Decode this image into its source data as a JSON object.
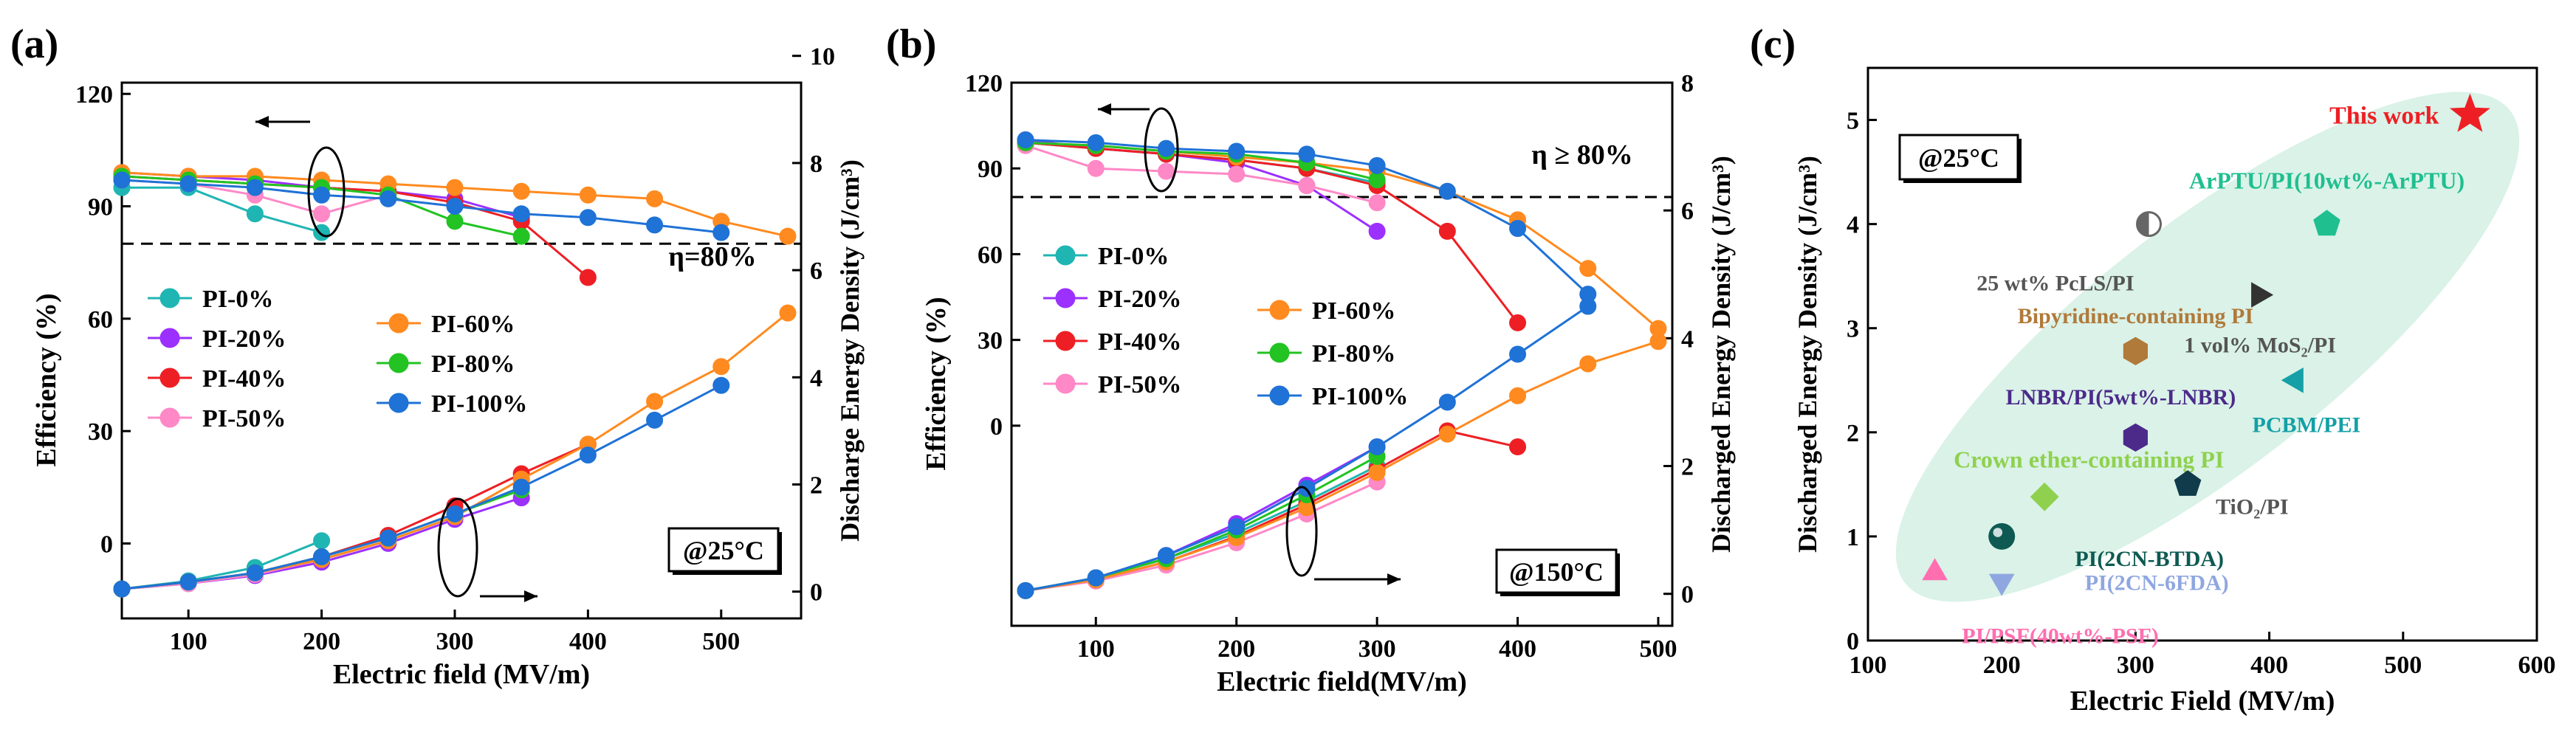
{
  "figure": {
    "domain": "Chart"
  },
  "chart_data": [
    {
      "id": "a",
      "panel_label": "(a)",
      "type": "line",
      "xlabel": "Electric field (MV/m)",
      "ylabel": "Efficiency (%)",
      "y2label": "Discharge Energy Density  (J/cm³)",
      "xlim": [
        50,
        560
      ],
      "ylim": [
        -20,
        123
      ],
      "y2lim": [
        -0.5,
        9.5
      ],
      "x_ticks": [
        100,
        200,
        300,
        400,
        500
      ],
      "y_ticks": [
        0,
        30,
        60,
        90,
        120
      ],
      "y2_ticks": [
        0,
        2,
        4,
        6,
        8,
        10
      ],
      "threshold": {
        "value": 80,
        "label": "η=80%"
      },
      "temperature_label": "@25°C",
      "legend_columns": [
        [
          "PI-0%",
          "PI-20%",
          "PI-40%",
          "PI-50%"
        ],
        [
          "PI-60%",
          "PI-80%",
          "PI-100%"
        ]
      ],
      "series": [
        {
          "name": "PI-0%",
          "color": "#1fb5b3",
          "efficiency": {
            "x": [
              50,
              100,
              150,
              200
            ],
            "y": [
              95,
              95,
              88,
              83
            ]
          },
          "energy": {
            "x": [
              50,
              100,
              150,
              200
            ],
            "y": [
              0.05,
              0.2,
              0.45,
              0.95
            ]
          }
        },
        {
          "name": "PI-20%",
          "color": "#9b30ff",
          "efficiency": {
            "x": [
              50,
              100,
              150,
              200,
              250,
              300,
              350
            ],
            "y": [
              99,
              98,
              97,
              95,
              94,
              92,
              87
            ]
          },
          "energy": {
            "x": [
              50,
              100,
              150,
              200,
              250,
              300,
              350
            ],
            "y": [
              0.05,
              0.15,
              0.3,
              0.55,
              0.9,
              1.35,
              1.75
            ]
          }
        },
        {
          "name": "PI-40%",
          "color": "#ee1f24",
          "efficiency": {
            "x": [
              50,
              100,
              150,
              200,
              250,
              300,
              350,
              400
            ],
            "y": [
              98,
              97,
              96,
              95,
              94,
              91,
              86,
              71
            ]
          },
          "energy": {
            "x": [
              50,
              100,
              150,
              200,
              250,
              300,
              350,
              400
            ],
            "y": [
              0.05,
              0.18,
              0.35,
              0.65,
              1.05,
              1.6,
              2.2,
              2.75
            ]
          }
        },
        {
          "name": "PI-50%",
          "color": "#ff88c6",
          "efficiency": {
            "x": [
              50,
              100,
              150,
              200,
              250
            ],
            "y": [
              97,
              96,
              93,
              88,
              93
            ]
          },
          "energy": {
            "x": [
              50,
              100,
              150,
              200,
              250
            ],
            "y": [
              0.05,
              0.15,
              0.32,
              0.6,
              0.95
            ]
          }
        },
        {
          "name": "PI-60%",
          "color": "#ff8a1f",
          "efficiency": {
            "x": [
              50,
              100,
              150,
              200,
              250,
              300,
              350,
              400,
              450,
              500,
              550
            ],
            "y": [
              99,
              98,
              98,
              97,
              96,
              95,
              94,
              93,
              92,
              86,
              82
            ]
          },
          "energy": {
            "x": [
              50,
              100,
              150,
              200,
              250,
              300,
              350,
              400,
              450,
              500,
              550
            ],
            "y": [
              0.05,
              0.18,
              0.35,
              0.6,
              0.95,
              1.4,
              2.1,
              2.75,
              3.55,
              4.2,
              5.2
            ]
          }
        },
        {
          "name": "PI-80%",
          "color": "#22c322",
          "efficiency": {
            "x": [
              50,
              100,
              150,
              200,
              250,
              300,
              350
            ],
            "y": [
              98,
              97,
              96,
              95,
              93,
              86,
              82
            ]
          },
          "energy": {
            "x": [
              50,
              100,
              150,
              200,
              250,
              300,
              350
            ],
            "y": [
              0.05,
              0.18,
              0.35,
              0.65,
              1.0,
              1.45,
              1.9
            ]
          }
        },
        {
          "name": "PI-100%",
          "color": "#1f72d6",
          "efficiency": {
            "x": [
              50,
              100,
              150,
              200,
              250,
              300,
              350,
              400,
              450,
              500
            ],
            "y": [
              97,
              96,
              95,
              93,
              92,
              90,
              88,
              87,
              85,
              83
            ]
          },
          "energy": {
            "x": [
              50,
              100,
              150,
              200,
              250,
              300,
              350,
              400,
              450,
              500
            ],
            "y": [
              0.05,
              0.18,
              0.35,
              0.65,
              1.0,
              1.45,
              1.95,
              2.55,
              3.2,
              3.85
            ]
          }
        }
      ]
    },
    {
      "id": "b",
      "panel_label": "(b)",
      "type": "line",
      "xlabel": "Electric field(MV/m)",
      "ylabel": "Efficiency (%)",
      "y2label": "Discharged Energy Density (J/cm³)",
      "xlim": [
        40,
        510
      ],
      "ylim": [
        -70,
        120
      ],
      "y2lim": [
        -0.5,
        8
      ],
      "x_ticks": [
        100,
        200,
        300,
        400,
        500
      ],
      "y_ticks": [
        0,
        30,
        60,
        90,
        120
      ],
      "y2_ticks": [
        0,
        2,
        4,
        6,
        8
      ],
      "threshold": {
        "value": 80,
        "label": "η ≥ 80%"
      },
      "temperature_label": "@150°C",
      "legend_columns": [
        [
          "PI-0%",
          "PI-20%",
          "PI-40%",
          "PI-50%"
        ],
        [
          "PI-60%",
          "PI-80%",
          "PI-100%"
        ]
      ],
      "series": [
        {
          "name": "PI-0%",
          "color": "#1fb5b3",
          "efficiency": {
            "x": [
              50,
              100,
              150,
              200,
              250,
              300
            ],
            "y": [
              99,
              97,
              95,
              93,
              90,
              85
            ]
          },
          "energy": {
            "x": [
              50,
              100,
              150,
              200,
              250,
              300
            ],
            "y": [
              0.05,
              0.25,
              0.55,
              0.95,
              1.45,
              2.0
            ]
          }
        },
        {
          "name": "PI-20%",
          "color": "#9b30ff",
          "efficiency": {
            "x": [
              50,
              100,
              150,
              200,
              250,
              300
            ],
            "y": [
              100,
              97,
              95,
              92,
              84,
              68
            ]
          },
          "energy": {
            "x": [
              50,
              100,
              150,
              200,
              250,
              300
            ],
            "y": [
              0.05,
              0.25,
              0.6,
              1.1,
              1.7,
              2.3
            ]
          }
        },
        {
          "name": "PI-40%",
          "color": "#ee1f24",
          "efficiency": {
            "x": [
              50,
              100,
              150,
              200,
              250,
              300,
              350,
              400
            ],
            "y": [
              99,
              97,
              95,
              93,
              90,
              84,
              68,
              36
            ]
          },
          "energy": {
            "x": [
              50,
              100,
              150,
              200,
              250,
              300,
              350,
              400
            ],
            "y": [
              0.05,
              0.22,
              0.5,
              0.9,
              1.4,
              1.95,
              2.55,
              2.3
            ]
          }
        },
        {
          "name": "PI-50%",
          "color": "#ff88c6",
          "efficiency": {
            "x": [
              50,
              100,
              150,
              200,
              250,
              300
            ],
            "y": [
              98,
              90,
              89,
              88,
              84,
              78
            ]
          },
          "energy": {
            "x": [
              50,
              100,
              150,
              200,
              250,
              300
            ],
            "y": [
              0.05,
              0.2,
              0.45,
              0.8,
              1.25,
              1.75
            ]
          }
        },
        {
          "name": "PI-60%",
          "color": "#ff8a1f",
          "efficiency": {
            "x": [
              50,
              100,
              150,
              200,
              250,
              300,
              350,
              400,
              450,
              500
            ],
            "y": [
              99,
              98,
              96,
              94,
              92,
              89,
              82,
              72,
              55,
              34
            ]
          },
          "energy": {
            "x": [
              50,
              100,
              150,
              200,
              250,
              300,
              350,
              400,
              450,
              500
            ],
            "y": [
              0.05,
              0.22,
              0.5,
              0.88,
              1.35,
              1.9,
              2.5,
              3.1,
              3.6,
              3.95
            ]
          }
        },
        {
          "name": "PI-80%",
          "color": "#22c322",
          "efficiency": {
            "x": [
              50,
              100,
              150,
              200,
              250,
              300
            ],
            "y": [
              99,
              98,
              96,
              95,
              92,
              86
            ]
          },
          "energy": {
            "x": [
              50,
              100,
              150,
              200,
              250,
              300
            ],
            "y": [
              0.05,
              0.25,
              0.55,
              1.0,
              1.55,
              2.15
            ]
          }
        },
        {
          "name": "PI-100%",
          "color": "#1f72d6",
          "efficiency": {
            "x": [
              50,
              100,
              150,
              200,
              250,
              300,
              350,
              400,
              450
            ],
            "y": [
              100,
              99,
              97,
              96,
              95,
              91,
              82,
              69,
              46
            ]
          },
          "energy": {
            "x": [
              50,
              100,
              150,
              200,
              250,
              300,
              350,
              400,
              450
            ],
            "y": [
              0.05,
              0.25,
              0.6,
              1.05,
              1.65,
              2.3,
              3.0,
              3.75,
              4.5
            ]
          }
        }
      ]
    },
    {
      "id": "c",
      "panel_label": "(c)",
      "type": "scatter",
      "xlabel": "Electric Field (MV/m)",
      "ylabel": "Discharged Energy Density (J/cm³)",
      "xlim": [
        100,
        600
      ],
      "ylim": [
        0,
        5.5
      ],
      "x_ticks": [
        100,
        200,
        300,
        400,
        500,
        600
      ],
      "y_ticks": [
        0,
        1,
        2,
        3,
        4,
        5
      ],
      "temperature_label": "@25°C",
      "points": [
        {
          "label": "This work",
          "x": 550,
          "y": 5.05,
          "marker": "star",
          "color": "#ee1f24"
        },
        {
          "label": "ArPTU/PI(10wt%-ArPTU)",
          "x": 443,
          "y": 4.0,
          "marker": "pentagon",
          "color": "#1fbf8f"
        },
        {
          "label": "25 wt% PcLS/PI",
          "x": 310,
          "y": 4.0,
          "marker": "halfcircle",
          "color": "#666666"
        },
        {
          "label": "1 vol% MoS₂/PI",
          "x": 392,
          "y": 3.32,
          "marker": "triangle-right",
          "color": "#333333"
        },
        {
          "label": "Bipyridine-containing PI",
          "x": 300,
          "y": 2.78,
          "marker": "hexagon",
          "color": "#b07a3a"
        },
        {
          "label": "PCBM/PEI",
          "x": 420,
          "y": 2.5,
          "marker": "triangle-left",
          "color": "#14a0a6"
        },
        {
          "label": "LNBR/PI(5wt%-LNBR)",
          "x": 300,
          "y": 1.95,
          "marker": "hexagon",
          "color": "#4b2a8a"
        },
        {
          "label": "Crown ether-containing PI",
          "x": 232,
          "y": 1.38,
          "marker": "diamond",
          "color": "#8fd14f"
        },
        {
          "label": "TiO₂/PI",
          "x": 339,
          "y": 1.5,
          "marker": "pentagon",
          "color": "#0f3b4a"
        },
        {
          "label": "PI(2CN-BTDA)",
          "x": 200,
          "y": 1.0,
          "marker": "sphere",
          "color": "#0e5a52"
        },
        {
          "label": "PI(2CN-6FDA)",
          "x": 200,
          "y": 0.57,
          "marker": "triangle-down",
          "color": "#8fa7e0"
        },
        {
          "label": "PI/PSF(40wt%-PSF)",
          "x": 150,
          "y": 0.65,
          "marker": "triangle-up",
          "color": "#ff6fb0"
        }
      ]
    }
  ]
}
